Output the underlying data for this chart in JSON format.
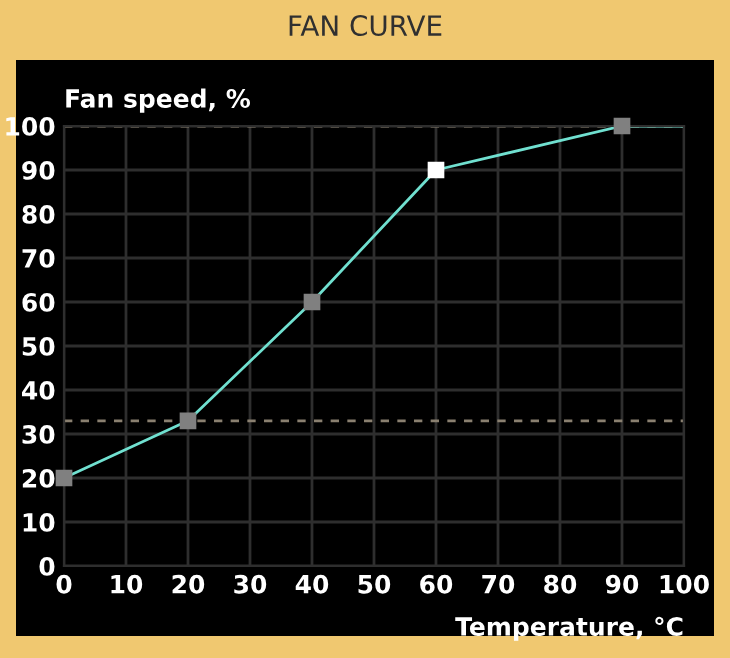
{
  "chart_data": {
    "type": "line",
    "title": "FAN CURVE",
    "xlabel": "Temperature, °C",
    "ylabel": "Fan speed, %",
    "x": [
      0,
      20,
      40,
      60,
      90,
      100
    ],
    "series": [
      {
        "color": "#70e0d0",
        "values": [
          20,
          33,
          60,
          90,
          100,
          100
        ],
        "colors": [
          "#808080",
          "#808080",
          "#808080",
          "#ffffff",
          "#808080",
          null
        ]
      }
    ],
    "marker": "square",
    "line_style": "solid",
    "xlim": [
      0,
      100
    ],
    "xticks": [
      0,
      10,
      20,
      30,
      40,
      50,
      60,
      70,
      80,
      90,
      100
    ],
    "ylim": [
      0,
      100
    ],
    "yticks": [
      0,
      10,
      20,
      30,
      40,
      50,
      60,
      70,
      80,
      90,
      100
    ],
    "grid": true,
    "ref_lines": [
      {
        "axis": "y",
        "value": 100,
        "color": "#8a8070",
        "line_style": "dashed"
      },
      {
        "axis": "y",
        "value": 33,
        "color": "#8a8070",
        "line_style": "dashed"
      }
    ]
  }
}
